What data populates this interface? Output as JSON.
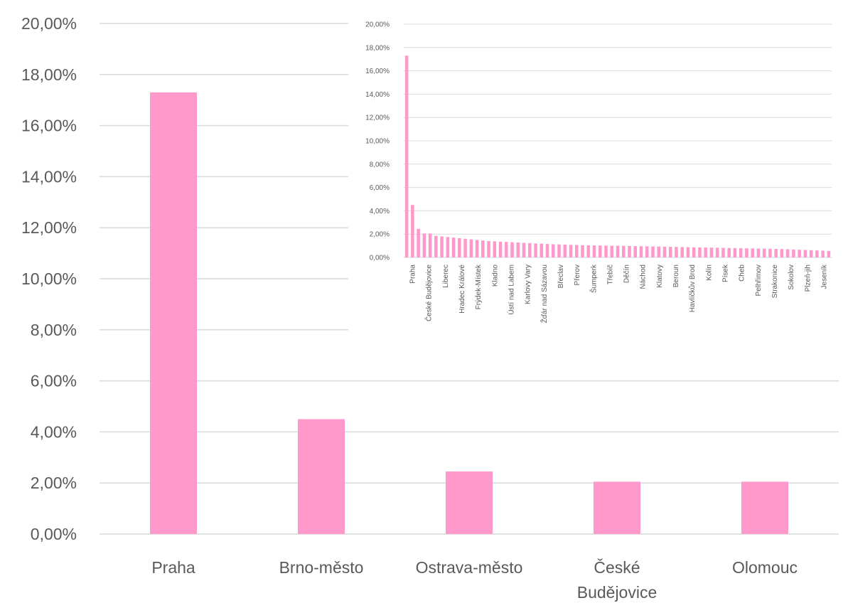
{
  "chart_data": [
    {
      "type": "bar",
      "title": "",
      "xlabel": "",
      "ylabel": "",
      "ylim": [
        0,
        20
      ],
      "y_tick_labels": [
        "0,00%",
        "2,00%",
        "4,00%",
        "6,00%",
        "8,00%",
        "10,00%",
        "12,00%",
        "14,00%",
        "16,00%",
        "18,00%",
        "20,00%"
      ],
      "categories": [
        "Praha",
        "Brno-město",
        "Ostrava-město",
        "České Budějovice",
        "Olomouc"
      ],
      "category_label_lines": [
        [
          "Praha"
        ],
        [
          "Brno-město"
        ],
        [
          "Ostrava-město"
        ],
        [
          "České",
          "Budějovice"
        ],
        [
          "Olomouc"
        ]
      ],
      "values": [
        17.3,
        4.5,
        2.45,
        2.05,
        2.05
      ],
      "grid": true,
      "legend": "none",
      "bar_color": "#ff99cc"
    },
    {
      "type": "bar",
      "title": "",
      "xlabel": "",
      "ylabel": "",
      "ylim": [
        0,
        20
      ],
      "y_tick_labels": [
        "0,00%",
        "2,00%",
        "4,00%",
        "6,00%",
        "8,00%",
        "10,00%",
        "12,00%",
        "14,00%",
        "16,00%",
        "18,00%",
        "20,00%"
      ],
      "visible_category_labels": [
        "Praha",
        "České Budějovice",
        "Liberec",
        "Hradec Králové",
        "Frýdek-Místek",
        "Kladno",
        "Ústí nad Labem",
        "Karlovy Vary",
        "Žďár nad Sázavou",
        "Břeclav",
        "Přerov",
        "Šumperk",
        "Třebíč",
        "Děčín",
        "Náchod",
        "Klatovy",
        "Beroun",
        "Havlíčkův Brod",
        "Kolín",
        "Písek",
        "Cheb",
        "Pelhřimov",
        "Strakonice",
        "Sokolov",
        "Plzeň-jih",
        "Jeseník"
      ],
      "values": [
        17.3,
        4.5,
        2.45,
        2.05,
        2.05,
        1.85,
        1.8,
        1.75,
        1.7,
        1.65,
        1.6,
        1.55,
        1.5,
        1.45,
        1.4,
        1.38,
        1.35,
        1.33,
        1.3,
        1.28,
        1.25,
        1.23,
        1.2,
        1.18,
        1.15,
        1.13,
        1.12,
        1.1,
        1.08,
        1.07,
        1.05,
        1.04,
        1.03,
        1.02,
        1.01,
        1.0,
        1.0,
        0.99,
        0.98,
        0.97,
        0.96,
        0.95,
        0.94,
        0.93,
        0.92,
        0.91,
        0.9,
        0.89,
        0.88,
        0.87,
        0.86,
        0.85,
        0.84,
        0.83,
        0.82,
        0.81,
        0.8,
        0.79,
        0.78,
        0.77,
        0.76,
        0.75,
        0.74,
        0.73,
        0.72,
        0.7,
        0.68,
        0.66,
        0.64,
        0.62,
        0.6,
        0.58,
        0.55
      ],
      "grid": true,
      "legend": "none",
      "bar_color": "#ff99cc"
    }
  ],
  "colors": {
    "bar": "#ff99cc",
    "grid": "#d9d9d9",
    "text": "#595959"
  }
}
